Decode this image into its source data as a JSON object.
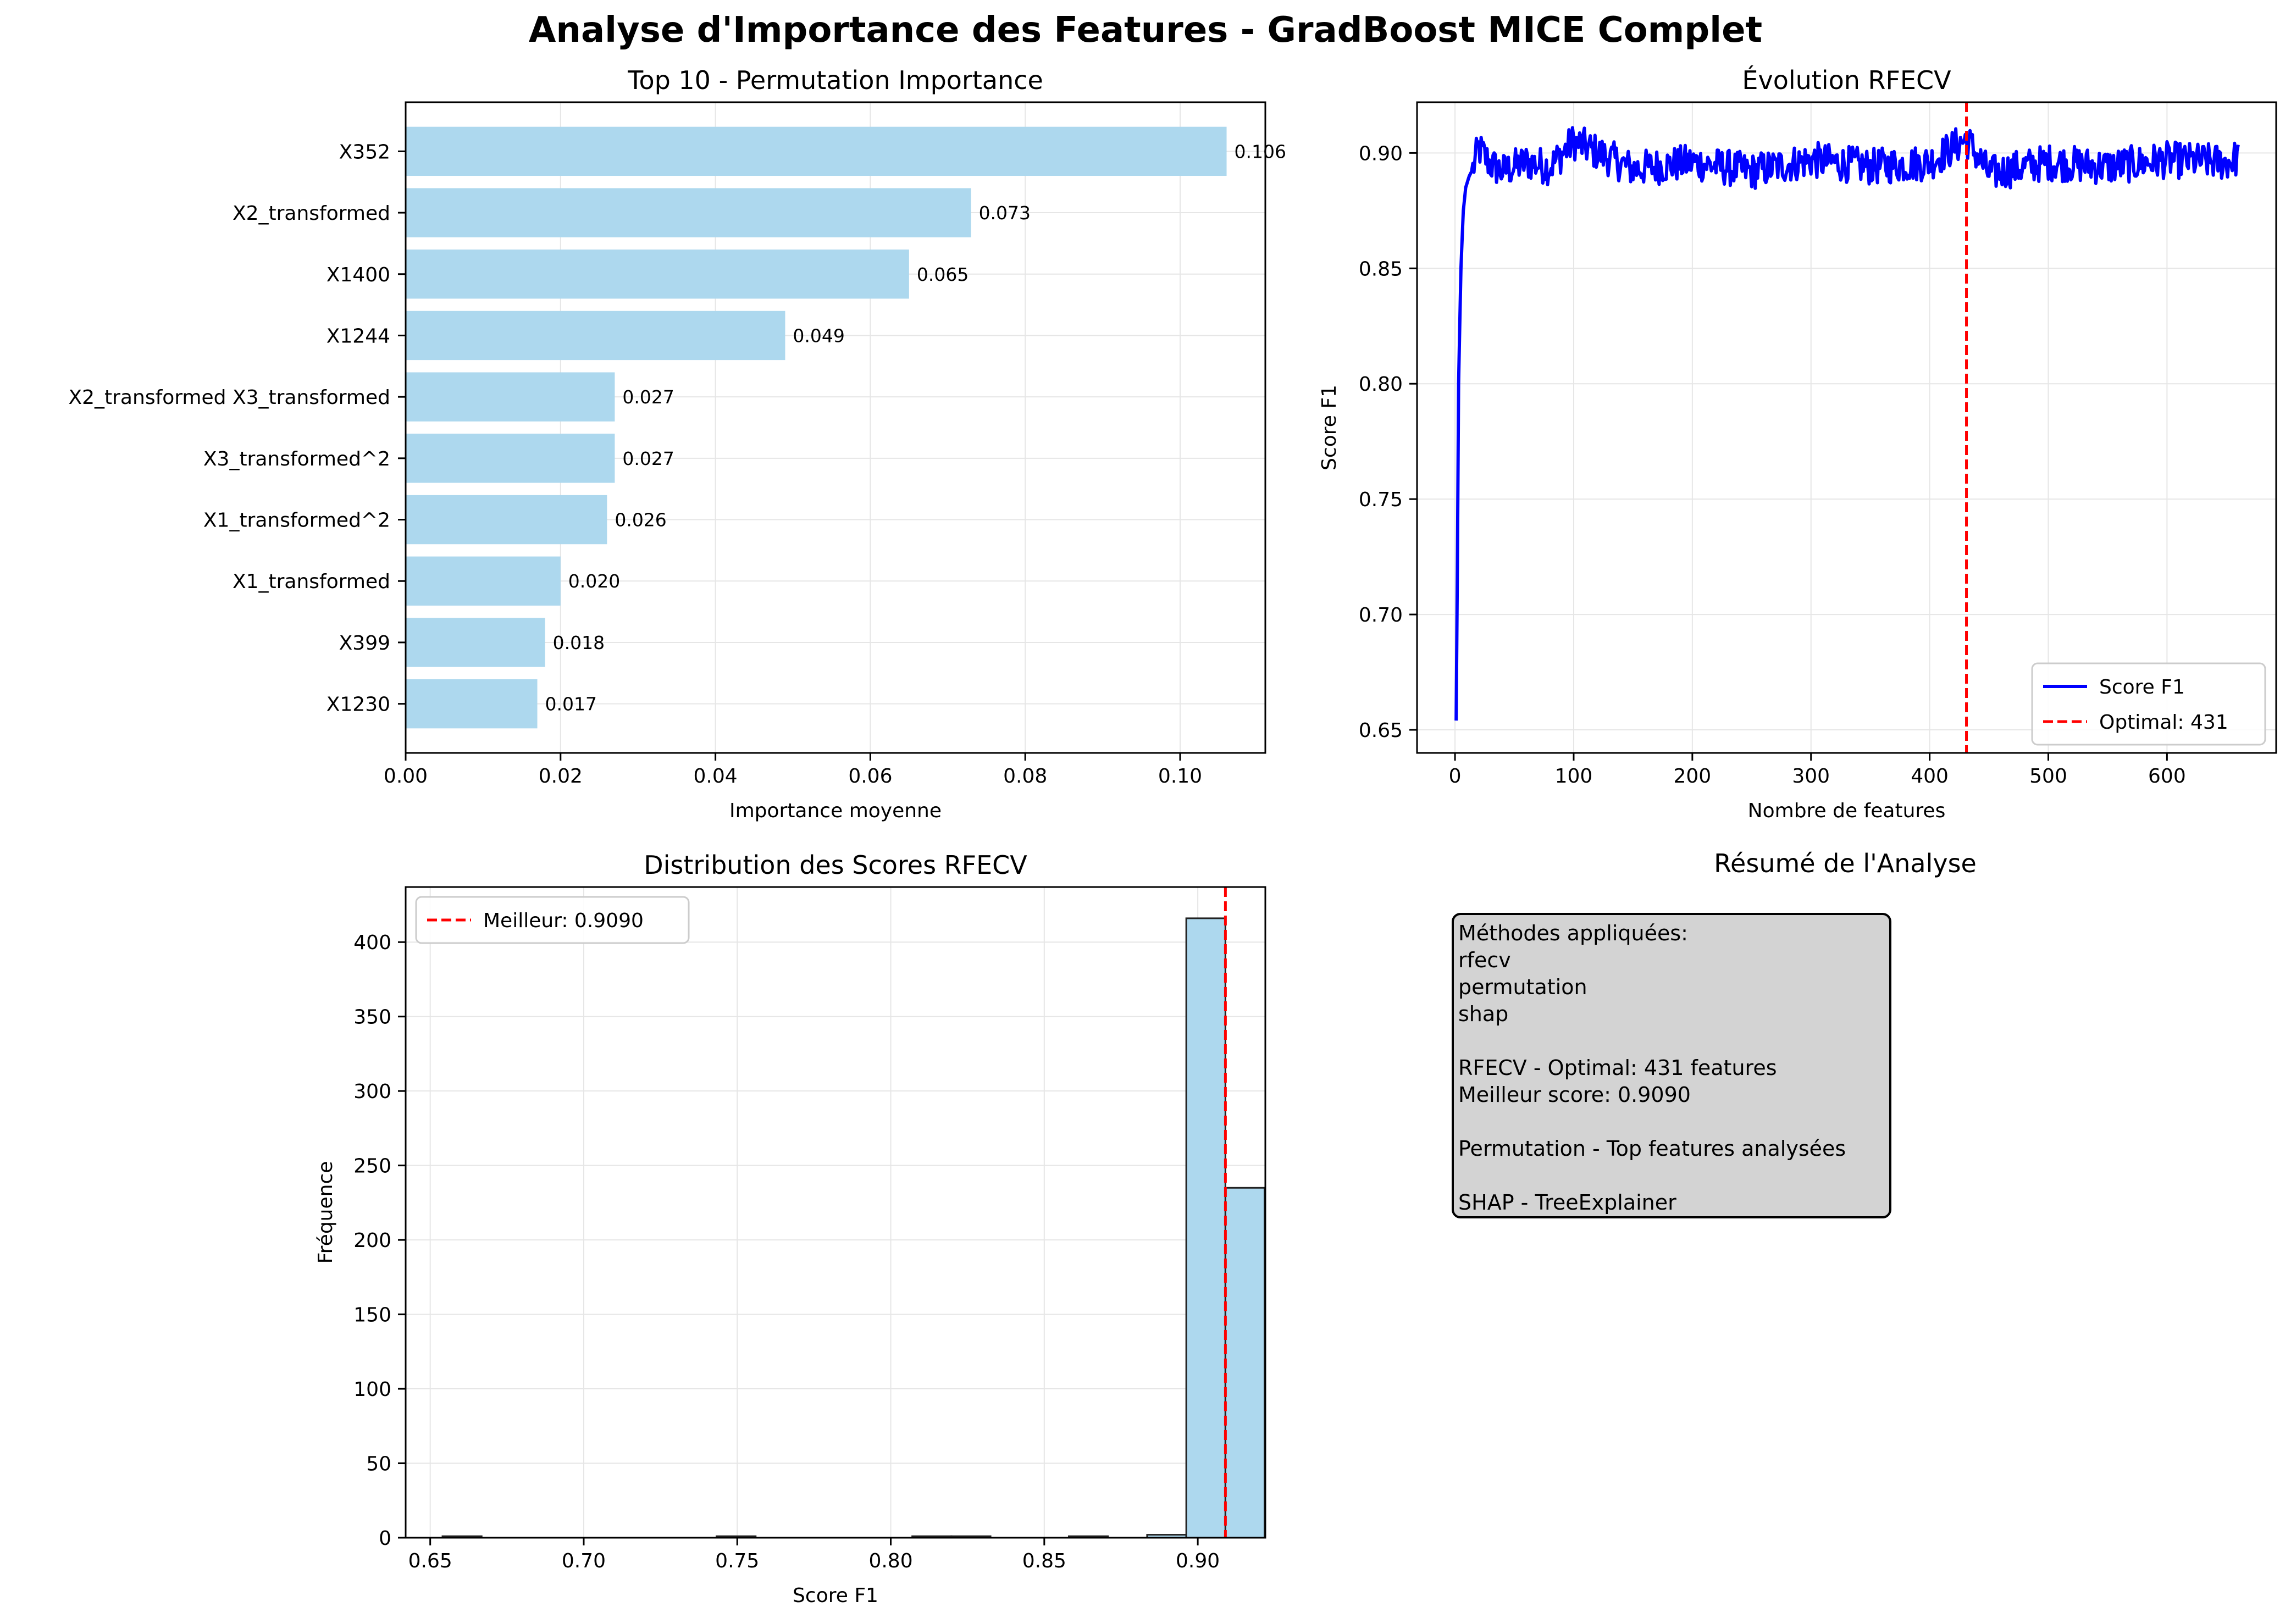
{
  "figure": {
    "suptitle": "Analyse d'Importance des Features - GradBoost MICE Complet"
  },
  "colors": {
    "bar": "#add8ee",
    "line": "#0000ff",
    "optimal": "#ff0000",
    "summary_box": "#d3d3d3",
    "grid": "#e6e6e6"
  },
  "chart_data": [
    {
      "type": "bar",
      "orientation": "horizontal",
      "title": "Top 10 - Permutation Importance",
      "xlabel": "Importance moyenne",
      "ylabel": "",
      "categories": [
        "X1230",
        "X399",
        "X1_transformed",
        "X1_transformed^2",
        "X3_transformed^2",
        "X2_transformed X3_transformed",
        "X1244",
        "X1400",
        "X2_transformed",
        "X352"
      ],
      "values": [
        0.017,
        0.018,
        0.02,
        0.026,
        0.027,
        0.027,
        0.049,
        0.065,
        0.073,
        0.106
      ],
      "value_labels": [
        "0.017",
        "0.018",
        "0.020",
        "0.026",
        "0.027",
        "0.027",
        "0.049",
        "0.065",
        "0.073",
        "0.106"
      ],
      "xlim": [
        0,
        0.111
      ],
      "xticks": [
        0.0,
        0.02,
        0.04,
        0.06,
        0.08,
        0.1
      ],
      "xtick_labels": [
        "0.00",
        "0.02",
        "0.04",
        "0.06",
        "0.08",
        "0.10"
      ],
      "grid": true
    },
    {
      "type": "line",
      "title": "Évolution RFECV",
      "xlabel": "Nombre de features",
      "ylabel": "Score F1",
      "x_range": [
        1,
        660
      ],
      "xlim": [
        -32,
        692
      ],
      "ylim": [
        0.64,
        0.922
      ],
      "xticks": [
        0,
        100,
        200,
        300,
        400,
        500,
        600
      ],
      "xtick_labels": [
        "0",
        "100",
        "200",
        "300",
        "400",
        "500",
        "600"
      ],
      "yticks": [
        0.65,
        0.7,
        0.75,
        0.8,
        0.85,
        0.9
      ],
      "ytick_labels": [
        "0.65",
        "0.70",
        "0.75",
        "0.80",
        "0.85",
        "0.90"
      ],
      "series": [
        {
          "name": "Score F1",
          "x": [
            1,
            2,
            3,
            5,
            7,
            9,
            12,
            15,
            20,
            30,
            40,
            60,
            80,
            100,
            150,
            200,
            250,
            300,
            350,
            400,
            431,
            450,
            500,
            550,
            600,
            650,
            660
          ],
          "y": [
            0.654,
            0.72,
            0.8,
            0.85,
            0.875,
            0.885,
            0.89,
            0.893,
            0.902,
            0.895,
            0.892,
            0.896,
            0.894,
            0.905,
            0.893,
            0.896,
            0.892,
            0.897,
            0.894,
            0.896,
            0.906,
            0.891,
            0.896,
            0.894,
            0.897,
            0.896,
            0.898
          ]
        },
        {
          "name": "Optimal: 431",
          "vline_x": 431
        }
      ],
      "legend_position": "lower-right",
      "grid": true
    },
    {
      "type": "histogram",
      "title": "Distribution des Scores RFECV",
      "xlabel": "Score F1",
      "ylabel": "Fréquence",
      "bin_start": 0.654,
      "bin_width": 0.01275,
      "counts": [
        1,
        0,
        0,
        0,
        0,
        0,
        0,
        1,
        0,
        0,
        0,
        0,
        1,
        1,
        0,
        0,
        1,
        0,
        2,
        416,
        235
      ],
      "xlim": [
        0.642,
        0.922
      ],
      "ylim": [
        0,
        437
      ],
      "xticks": [
        0.65,
        0.7,
        0.75,
        0.8,
        0.85,
        0.9
      ],
      "xtick_labels": [
        "0.65",
        "0.70",
        "0.75",
        "0.80",
        "0.85",
        "0.90"
      ],
      "yticks": [
        0,
        50,
        100,
        150,
        200,
        250,
        300,
        350,
        400
      ],
      "ytick_labels": [
        "0",
        "50",
        "100",
        "150",
        "200",
        "250",
        "300",
        "350",
        "400"
      ],
      "series": [
        {
          "name": "Meilleur: 0.9090",
          "vline_x": 0.909
        }
      ],
      "legend_position": "upper-left",
      "grid": true
    }
  ],
  "summary": {
    "title": "Résumé de l'Analyse",
    "lines": [
      "Méthodes appliquées:",
      "rfecv",
      "permutation",
      "shap",
      "",
      "RFECV - Optimal: 431 features",
      "Meilleur score: 0.9090",
      "",
      "Permutation - Top features analysées",
      "",
      "SHAP - TreeExplainer"
    ]
  }
}
